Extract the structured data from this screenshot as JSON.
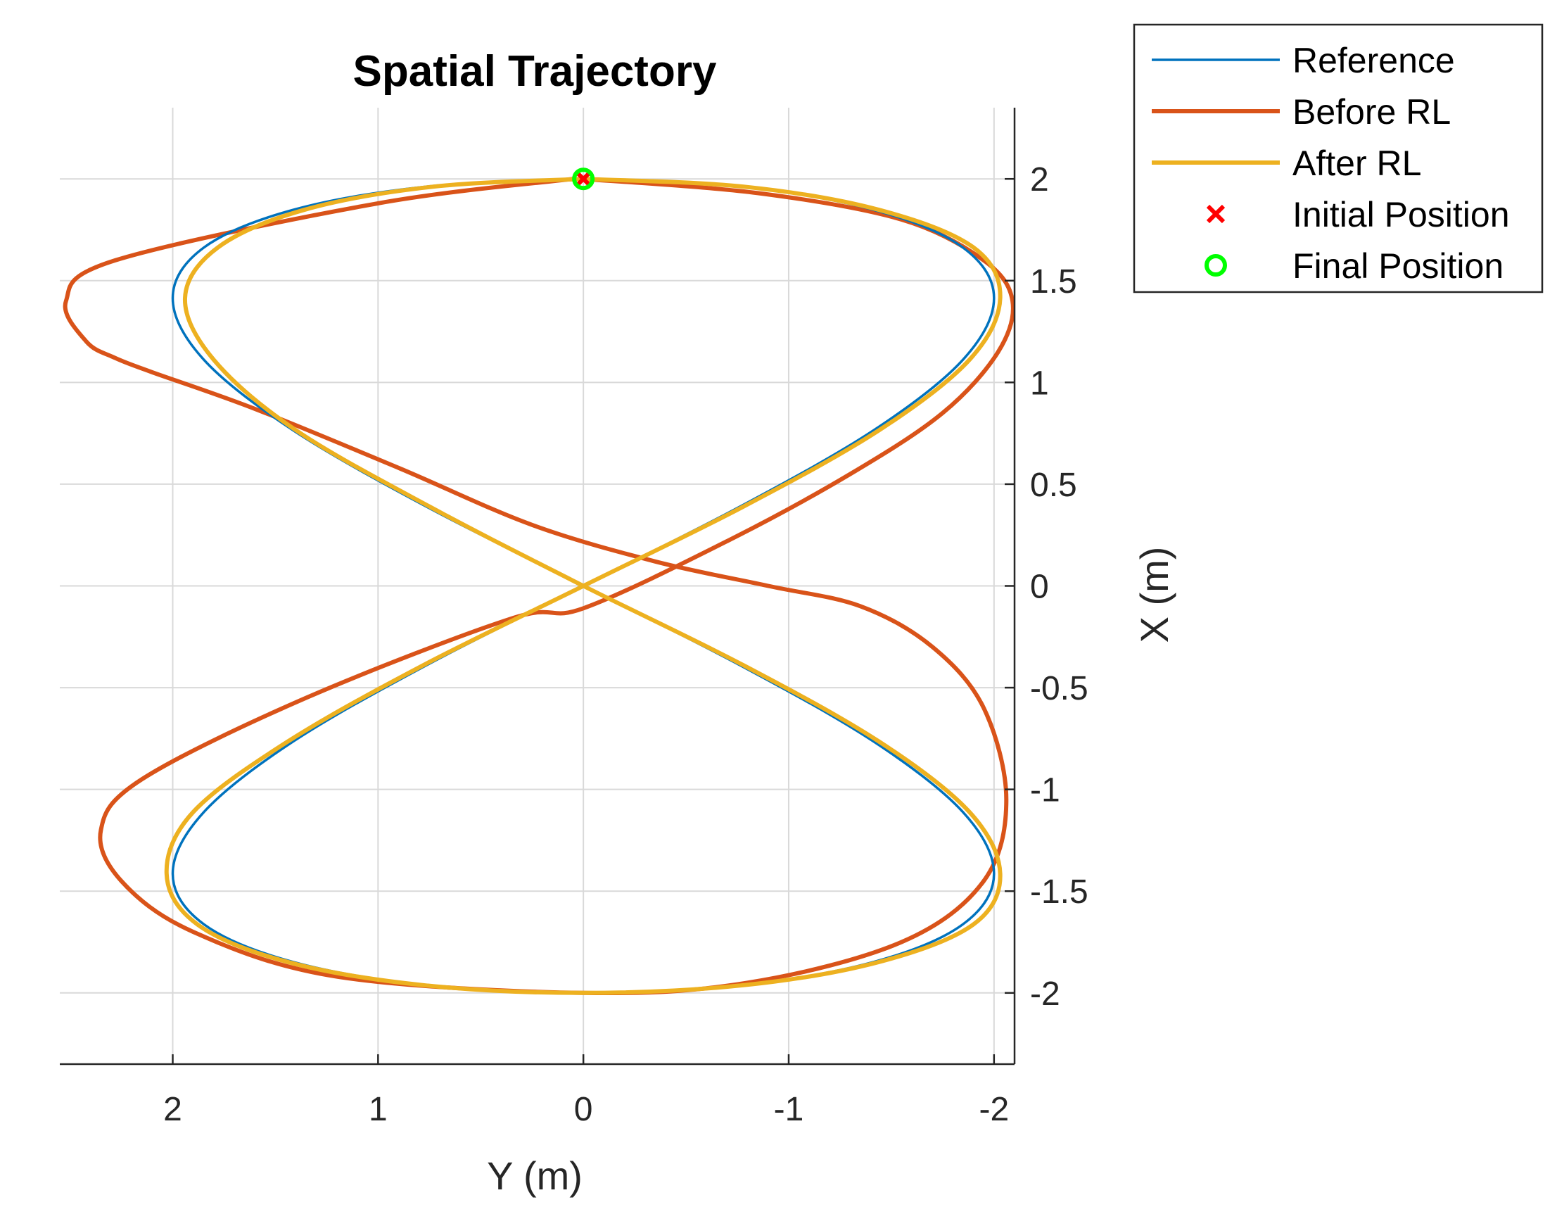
{
  "chart_data": {
    "type": "line",
    "title": "Spatial Trajectory",
    "xlabel": "Y (m)",
    "ylabel": "X (m)",
    "xlim": [
      2.55,
      -2.1
    ],
    "ylim": [
      -2.35,
      2.35
    ],
    "x_reversed": true,
    "xticks": [
      2,
      1,
      0,
      -1,
      -2
    ],
    "xtick_labels": [
      "2",
      "1",
      "0",
      "-1",
      "-2"
    ],
    "yticks": [
      2,
      1.5,
      1,
      0.5,
      0,
      -0.5,
      -1,
      -1.5,
      -2
    ],
    "ytick_labels": [
      "2",
      "1.5",
      "1",
      "0.5",
      "0",
      "-0.5",
      "-1",
      "-1.5",
      "-2"
    ],
    "grid": true,
    "legend_placement": "outside-top-right",
    "series": [
      {
        "name": "Reference",
        "color": "#0072BD",
        "x": [
          0.0,
          -0.764,
          -1.414,
          -1.848,
          -2.0,
          -1.848,
          -1.414,
          -0.764,
          0.0,
          0.765,
          1.414,
          1.848,
          2.0,
          1.848,
          1.414,
          0.765,
          0.0,
          -0.764,
          -1.414,
          -1.848,
          -2.0,
          -1.848,
          -1.414,
          -0.764,
          0.0,
          0.765,
          1.414,
          1.848,
          2.0,
          1.848,
          1.414,
          0.765,
          0.0
        ],
        "y": [
          2.0,
          1.962,
          1.848,
          1.663,
          1.414,
          1.111,
          0.765,
          0.39,
          0.0,
          -0.39,
          -0.765,
          -1.111,
          -1.414,
          -1.663,
          -1.848,
          -1.962,
          -2.0,
          -1.962,
          -1.848,
          -1.663,
          -1.414,
          -1.111,
          -0.765,
          -0.39,
          0.0,
          0.39,
          0.765,
          1.111,
          1.414,
          1.663,
          1.848,
          1.962,
          2.0
        ]
      },
      {
        "name": "Before RL",
        "color": "#D95319",
        "x": [
          0.0,
          -0.85,
          -1.55,
          -1.95,
          -2.09,
          -2.02,
          -1.75,
          -1.3,
          -0.7,
          0.0,
          0.35,
          1.35,
          2.15,
          2.35,
          2.25,
          1.9,
          1.2,
          0.0,
          -0.8,
          -1.55,
          -1.95,
          -2.06,
          -1.95,
          -1.7,
          -1.35,
          -0.9,
          -0.35,
          0.25,
          0.9,
          1.6,
          2.1,
          2.28,
          2.42,
          2.52,
          2.28,
          1.0,
          0.05
        ],
        "y": [
          2.0,
          1.93,
          1.8,
          1.6,
          1.4,
          1.15,
          0.85,
          0.55,
          0.22,
          -0.11,
          -0.16,
          -0.55,
          -0.95,
          -1.2,
          -1.45,
          -1.7,
          -1.92,
          -2.0,
          -1.95,
          -1.75,
          -1.45,
          -1.05,
          -0.6,
          -0.3,
          -0.1,
          0.0,
          0.12,
          0.3,
          0.58,
          0.87,
          1.05,
          1.12,
          1.2,
          1.4,
          1.6,
          1.88,
          2.0
        ]
      },
      {
        "name": "After RL",
        "color": "#EDB120",
        "x": [
          0.0,
          -0.78,
          -1.44,
          -1.9,
          -2.03,
          -1.88,
          -1.44,
          -0.78,
          0.0,
          0.78,
          1.44,
          1.9,
          2.03,
          1.88,
          1.44,
          0.78,
          0.0,
          -0.78,
          -1.44,
          -1.9,
          -2.03,
          -1.88,
          -1.44,
          -0.78,
          0.0,
          0.75,
          1.4,
          1.8,
          1.94,
          1.78,
          1.36,
          0.73,
          0.0
        ],
        "y": [
          2.0,
          1.962,
          1.848,
          1.663,
          1.414,
          1.111,
          0.765,
          0.39,
          0.0,
          -0.39,
          -0.765,
          -1.111,
          -1.414,
          -1.663,
          -1.848,
          -1.962,
          -2.0,
          -1.962,
          -1.848,
          -1.663,
          -1.414,
          -1.111,
          -0.765,
          -0.39,
          0.0,
          0.39,
          0.765,
          1.111,
          1.414,
          1.663,
          1.848,
          1.962,
          2.0
        ]
      }
    ],
    "markers": [
      {
        "name": "Initial Position",
        "symbol": "x",
        "color": "#FF0000",
        "x": 0.0,
        "y": 2.0
      },
      {
        "name": "Final Position",
        "symbol": "o",
        "color": "#00FF00",
        "x": 0.0,
        "y": 2.0
      }
    ]
  }
}
